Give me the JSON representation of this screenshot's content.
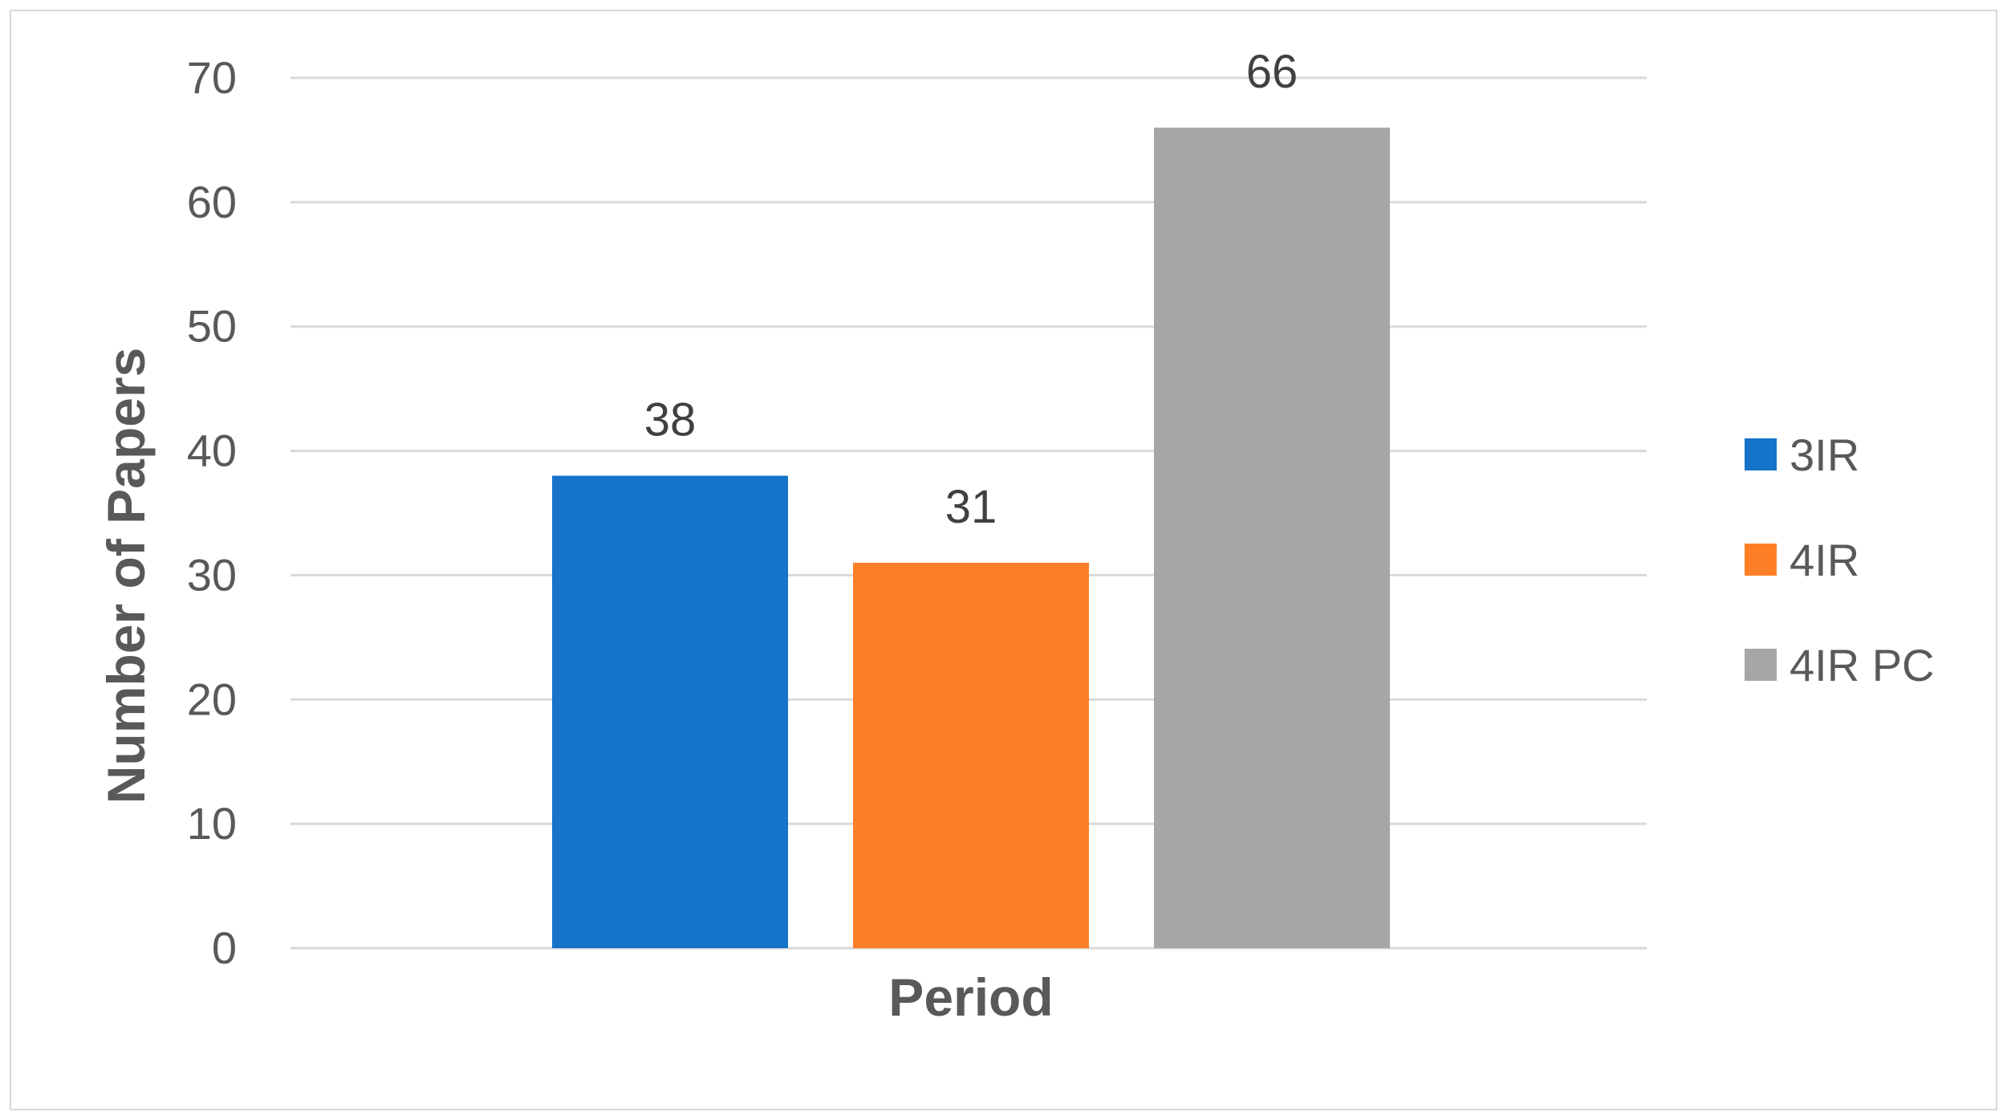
{
  "chart_data": {
    "type": "bar",
    "categories": [
      ""
    ],
    "series": [
      {
        "name": "3IR",
        "values": [
          38
        ],
        "color": "#1573C9"
      },
      {
        "name": "4IR",
        "values": [
          31
        ],
        "color": "#FF7F27"
      },
      {
        "name": "4IR PC",
        "values": [
          66
        ],
        "color": "#A6A6A6"
      }
    ],
    "title": "",
    "xlabel": "Period",
    "ylabel": "Number of Papers",
    "ylim": [
      0,
      70
    ],
    "yticks": [
      0,
      10,
      20,
      30,
      40,
      50,
      60,
      70
    ],
    "grid": true,
    "legend": "right",
    "data_labels": true
  }
}
